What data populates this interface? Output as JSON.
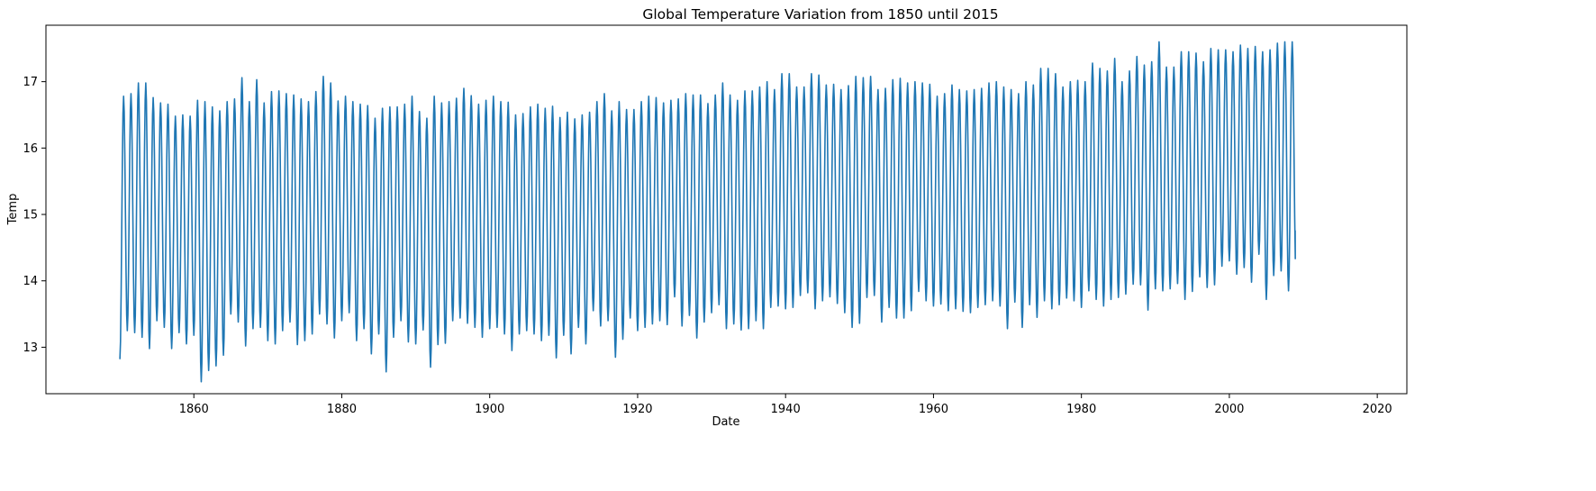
{
  "chart_data": {
    "type": "line",
    "title": "Global Temperature Variation from 1850 until 2015",
    "xlabel": "Date",
    "ylabel": "Temp",
    "xlim": [
      1840,
      2024
    ],
    "ylim": [
      12.3,
      17.85
    ],
    "x_ticks": [
      1860,
      1880,
      1900,
      1920,
      1940,
      1960,
      1980,
      2000,
      2020
    ],
    "y_ticks": [
      13,
      14,
      15,
      16,
      17
    ],
    "grid": false,
    "x_start": 1850.0,
    "x_step": 0.0833333,
    "series": [
      {
        "color": "#1f77b4",
        "summer_peaks": [
          16.78,
          16.82,
          16.98,
          16.98,
          16.76,
          16.68,
          16.66,
          16.48,
          16.5,
          16.48,
          16.72,
          16.7,
          16.62,
          16.56,
          16.7,
          16.74,
          17.06,
          16.7,
          17.03,
          16.68,
          16.85,
          16.86,
          16.82,
          16.8,
          16.74,
          16.7,
          16.85,
          17.08,
          16.98,
          16.71,
          16.78,
          16.7,
          16.66,
          16.64,
          16.45,
          16.6,
          16.62,
          16.62,
          16.66,
          16.78,
          16.55,
          16.45,
          16.78,
          16.68,
          16.7,
          16.75,
          16.9,
          16.79,
          16.66,
          16.72,
          16.78,
          16.7,
          16.69,
          16.5,
          16.52,
          16.62,
          16.66,
          16.6,
          16.63,
          16.46,
          16.54,
          16.44,
          16.5,
          16.54,
          16.7,
          16.82,
          16.56,
          16.7,
          16.58,
          16.58,
          16.7,
          16.78,
          16.76,
          16.68,
          16.72,
          16.74,
          16.82,
          16.8,
          16.8,
          16.67,
          16.8,
          16.98,
          16.8,
          16.72,
          16.86,
          16.86,
          16.92,
          17.0,
          16.88,
          17.12,
          17.12,
          16.92,
          16.92,
          17.12,
          17.1,
          16.95,
          16.96,
          16.88,
          16.94,
          17.08,
          17.06,
          17.08,
          16.88,
          16.9,
          17.03,
          17.05,
          16.98,
          17.0,
          16.98,
          16.96,
          16.78,
          16.82,
          16.95,
          16.88,
          16.86,
          16.88,
          16.9,
          16.98,
          17.0,
          16.92,
          16.88,
          16.82,
          17.0,
          16.95,
          17.2,
          17.2,
          17.12,
          16.92,
          17.0,
          17.02,
          17.0,
          17.28,
          17.2,
          17.16,
          17.35,
          17.0,
          17.16,
          17.38,
          17.25,
          17.3,
          17.6,
          17.22,
          17.22,
          17.45,
          17.45,
          17.43,
          17.3,
          17.5,
          17.48,
          17.48,
          17.45,
          17.55,
          17.5,
          17.53,
          17.45,
          17.48,
          17.58,
          17.6,
          17.6
        ],
        "winter_troughs": [
          12.82,
          13.25,
          13.22,
          13.15,
          12.98,
          13.4,
          13.3,
          12.98,
          13.22,
          13.05,
          13.18,
          12.48,
          12.65,
          12.72,
          12.88,
          13.5,
          13.38,
          13.02,
          13.28,
          13.3,
          13.1,
          13.05,
          13.25,
          13.38,
          13.04,
          13.1,
          13.2,
          13.5,
          13.35,
          13.14,
          13.4,
          13.52,
          13.1,
          13.28,
          12.9,
          13.2,
          12.63,
          13.15,
          13.4,
          13.08,
          13.05,
          13.26,
          12.7,
          13.04,
          13.06,
          13.4,
          13.44,
          13.36,
          13.3,
          13.15,
          13.28,
          13.3,
          13.2,
          12.95,
          13.2,
          13.25,
          13.2,
          13.1,
          13.18,
          12.84,
          13.18,
          12.9,
          13.3,
          13.05,
          13.55,
          13.32,
          13.4,
          12.85,
          13.12,
          13.44,
          13.25,
          13.3,
          13.35,
          13.4,
          13.34,
          13.76,
          13.32,
          13.48,
          13.14,
          13.38,
          13.52,
          13.64,
          13.28,
          13.35,
          13.26,
          13.28,
          13.4,
          13.28,
          13.6,
          13.62,
          13.58,
          13.6,
          13.78,
          13.82,
          13.58,
          13.7,
          13.76,
          13.66,
          13.52,
          13.3,
          13.36,
          13.75,
          13.78,
          13.38,
          13.6,
          13.44,
          13.44,
          13.55,
          13.84,
          13.7,
          13.62,
          13.65,
          13.55,
          13.58,
          13.54,
          13.52,
          13.6,
          13.64,
          13.7,
          13.62,
          13.28,
          13.68,
          13.3,
          13.64,
          13.45,
          13.7,
          13.58,
          13.64,
          13.74,
          13.7,
          13.6,
          13.85,
          13.72,
          13.62,
          13.72,
          13.75,
          13.8,
          13.95,
          13.94,
          13.56,
          13.88,
          13.85,
          13.88,
          13.96,
          13.72,
          13.84,
          14.06,
          13.9,
          13.94,
          14.22,
          14.3,
          14.1,
          14.2,
          13.98,
          14.4,
          13.72,
          14.08,
          14.15,
          13.85,
          14.1,
          14.15,
          14.25,
          14.76
        ]
      }
    ]
  }
}
